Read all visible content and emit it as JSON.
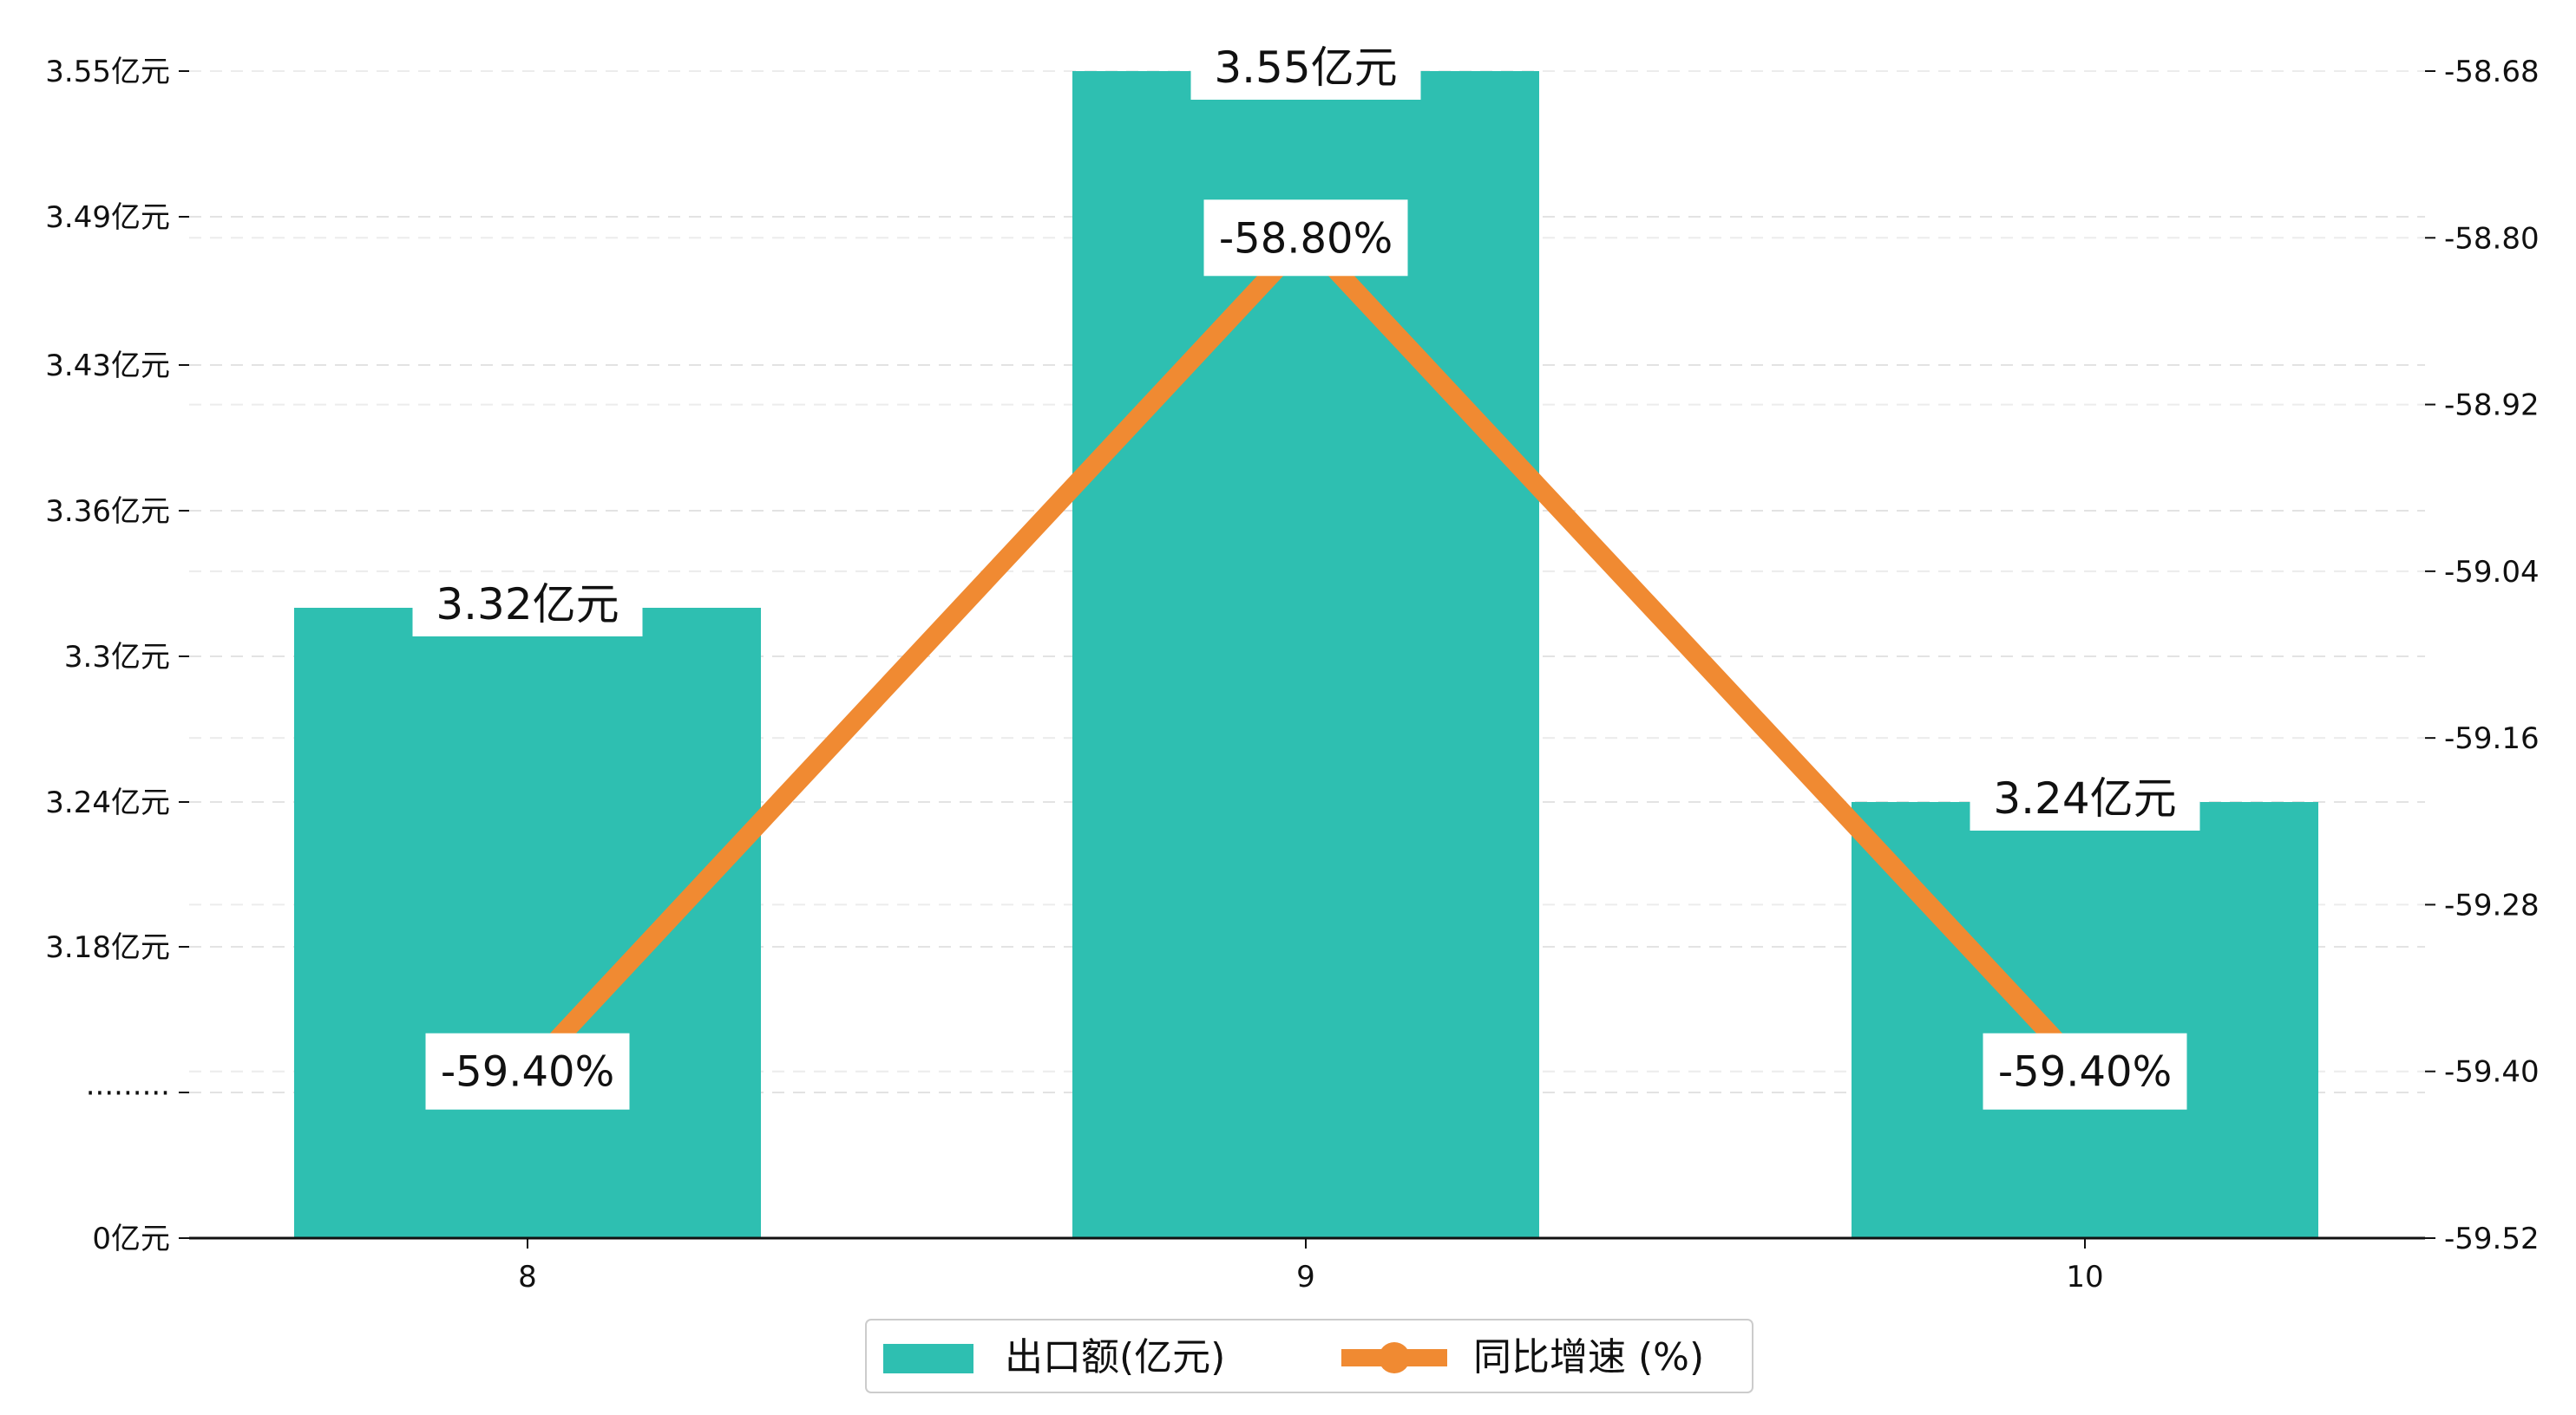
{
  "chart_data": {
    "type": "bar",
    "categories": [
      "8",
      "9",
      "10"
    ],
    "series": [
      {
        "name": "出口额(亿元)",
        "type": "bar",
        "axis": "left",
        "color": "#2ebfb1",
        "values": [
          3.32,
          3.55,
          3.24
        ],
        "labels": [
          "3.32亿元",
          "3.55亿元",
          "3.24亿元"
        ]
      },
      {
        "name": "同比增速 (%)",
        "type": "line",
        "axis": "right",
        "color": "#f08a32",
        "values": [
          -59.4,
          -58.8,
          -59.4
        ],
        "labels": [
          "-59.40%",
          "-58.80%",
          "-59.40%"
        ]
      }
    ],
    "left_axis": {
      "ticks": [
        {
          "value": 0,
          "label": "0亿元"
        },
        {
          "value": 3.12,
          "label": "·········"
        },
        {
          "value": 3.18,
          "label": "3.18亿元"
        },
        {
          "value": 3.24,
          "label": "3.24亿元"
        },
        {
          "value": 3.3,
          "label": "3.3亿元"
        },
        {
          "value": 3.36,
          "label": "3.36亿元"
        },
        {
          "value": 3.43,
          "label": "3.43亿元"
        },
        {
          "value": 3.49,
          "label": "3.49亿元"
        },
        {
          "value": 3.55,
          "label": "3.55亿元"
        }
      ],
      "broken": true
    },
    "right_axis": {
      "ylim": [
        -59.52,
        -58.68
      ],
      "ticks": [
        {
          "value": -59.52,
          "label": "-59.52"
        },
        {
          "value": -59.4,
          "label": "-59.40"
        },
        {
          "value": -59.28,
          "label": "-59.28"
        },
        {
          "value": -59.16,
          "label": "-59.16"
        },
        {
          "value": -59.04,
          "label": "-59.04"
        },
        {
          "value": -58.92,
          "label": "-58.92"
        },
        {
          "value": -58.8,
          "label": "-58.80"
        },
        {
          "value": -58.68,
          "label": "-58.68"
        }
      ]
    },
    "grid": "horizontal-dashed",
    "legend": "bottom-center"
  }
}
